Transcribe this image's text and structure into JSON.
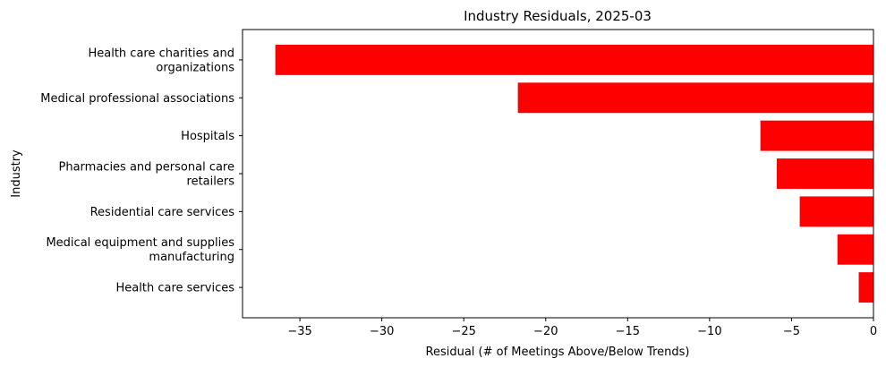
{
  "chart_data": {
    "type": "bar",
    "orientation": "horizontal",
    "title": "Industry Residuals, 2025-03",
    "xlabel": "Residual (# of Meetings Above/Below Trends)",
    "ylabel": "Industry",
    "xlim": [
      -38.5,
      0
    ],
    "xticks": [
      -35,
      -30,
      -25,
      -20,
      -15,
      -10,
      -5,
      0
    ],
    "xtick_labels": [
      "−35",
      "−30",
      "−25",
      "−20",
      "−15",
      "−10",
      "−5",
      "0"
    ],
    "categories": [
      [
        "Health care charities and",
        "organizations"
      ],
      [
        "Medical professional associations"
      ],
      [
        "Hospitals"
      ],
      [
        "Pharmacies and personal care",
        "retailers"
      ],
      [
        "Residential care services"
      ],
      [
        "Medical equipment and supplies",
        "manufacturing"
      ],
      [
        "Health care services"
      ]
    ],
    "values": [
      -36.5,
      -21.7,
      -6.9,
      -5.9,
      -4.5,
      -2.2,
      -0.9
    ],
    "bar_color": "#ff0000",
    "grid": false,
    "legend": "none"
  }
}
